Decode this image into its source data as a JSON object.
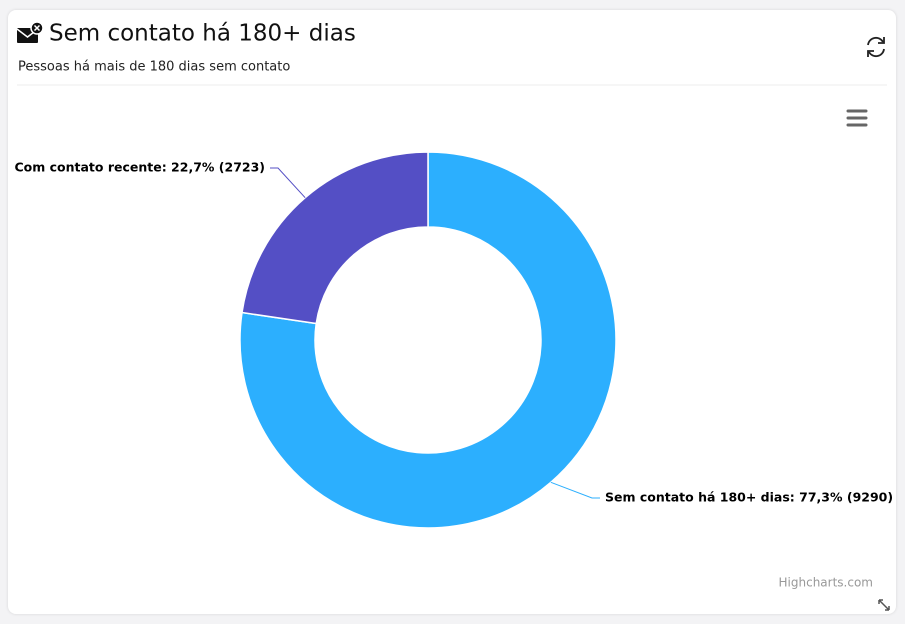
{
  "card": {
    "title": "Sem contato há 180+ dias",
    "subtitle": "Pessoas há mais de 180 dias sem contato"
  },
  "chart_data": {
    "type": "pie",
    "values": [
      9290,
      2723
    ],
    "value_labels": [
      "Sem contato há 180+ dias: 77,3% (9290)",
      "Com contato recente: 22,7% (2723)"
    ],
    "colors": [
      "#2caffe",
      "#544fc5"
    ],
    "credits": "Highcharts.com"
  }
}
